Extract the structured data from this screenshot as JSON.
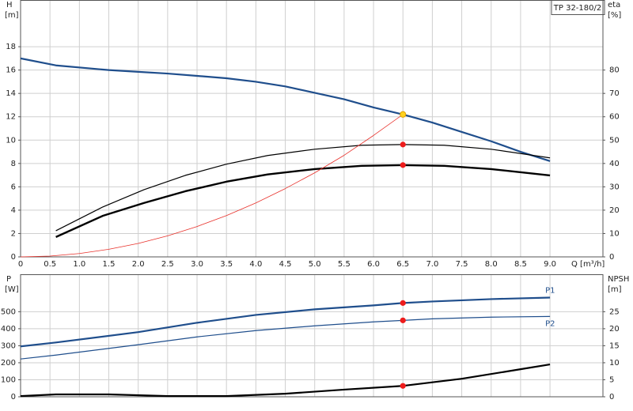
{
  "chart_data": [
    {
      "type": "line",
      "title": "TP 32-180/2",
      "xlabel": "Q [m³/h]",
      "ylabel": [
        "H",
        "[m]"
      ],
      "y2label": [
        "eta",
        "[%]"
      ],
      "xlim": [
        0,
        9.9
      ],
      "xticks": [
        0,
        0.5,
        {
          "value": 1,
          "label": "1.0"
        },
        1.5,
        {
          "value": 2,
          "label": "2.0"
        },
        2.5,
        {
          "value": 3,
          "label": "3.0"
        },
        3.5,
        {
          "value": 4,
          "label": "4.0"
        },
        4.5,
        {
          "value": 5,
          "label": "5.0"
        },
        5.5,
        {
          "value": 6,
          "label": "6.0"
        },
        6.5,
        {
          "value": 7,
          "label": "7.0"
        },
        7.5,
        {
          "value": 8,
          "label": "8.0"
        },
        8.5,
        {
          "value": 9,
          "label": "9.0"
        }
      ],
      "ylim": [
        0,
        22
      ],
      "yticks": [
        0,
        2,
        4,
        6,
        8,
        10,
        12,
        14,
        16,
        18
      ],
      "y2lim": [
        0,
        110
      ],
      "y2ticks": [
        0,
        10,
        20,
        30,
        40,
        50,
        60,
        70,
        80
      ],
      "grid": true,
      "series": [
        {
          "color": "#1f4e8c",
          "width": 2.2,
          "axis": "y",
          "x": [
            0,
            0.6,
            1.5,
            2,
            2.5,
            3,
            3.5,
            4,
            4.5,
            5,
            5.5,
            6,
            6.5,
            7,
            7.5,
            8,
            8.5,
            9
          ],
          "values": [
            17.0,
            16.4,
            16.0,
            15.85,
            15.7,
            15.5,
            15.3,
            15.0,
            14.6,
            14.05,
            13.5,
            12.8,
            12.2,
            11.5,
            10.7,
            9.9,
            9.0,
            8.2
          ]
        },
        {
          "color": "#000000",
          "width": 1.2,
          "axis": "y2",
          "x": [
            0.6,
            1.4,
            2.1,
            2.8,
            3.5,
            4.2,
            5.0,
            5.8,
            6.5,
            7.2,
            8.0,
            9.0
          ],
          "values": [
            11.2,
            21.4,
            28.8,
            34.9,
            39.7,
            43.4,
            46.1,
            47.8,
            48.1,
            47.8,
            46.1,
            42.4
          ]
        },
        {
          "color": "#000000",
          "width": 2.4,
          "axis": "y2",
          "x": [
            0.6,
            1.4,
            2.1,
            2.8,
            3.5,
            4.2,
            5.0,
            5.8,
            6.5,
            7.2,
            8.0,
            9.0
          ],
          "values": [
            8.5,
            17.6,
            23.1,
            28.1,
            32.2,
            35.3,
            37.6,
            39.0,
            39.3,
            39.0,
            37.6,
            34.9
          ]
        },
        {
          "color": "#e8302a",
          "width": 0.8,
          "axis": "y",
          "x": [
            0,
            0.5,
            1,
            1.5,
            2,
            2.5,
            3,
            3.5,
            4,
            4.5,
            5,
            5.5,
            6,
            6.5
          ],
          "values": [
            0,
            0.07,
            0.29,
            0.65,
            1.15,
            1.8,
            2.6,
            3.54,
            4.62,
            5.85,
            7.2,
            8.7,
            10.4,
            12.2
          ]
        }
      ],
      "points": [
        {
          "x": 6.5,
          "value": 12.2,
          "axis": "y",
          "color": "#ffd21f"
        },
        {
          "x": 6.5,
          "value": 48.1,
          "axis": "y2",
          "color": "#ee1c1c"
        },
        {
          "x": 6.5,
          "value": 39.3,
          "axis": "y2",
          "color": "#ee1c1c"
        }
      ]
    },
    {
      "type": "line",
      "ylabel": [
        "P",
        "[W]"
      ],
      "y2label": [
        "NPSH",
        "[m]"
      ],
      "ylim": [
        0,
        720
      ],
      "yticks": [
        0,
        100,
        200,
        300,
        400,
        500
      ],
      "y2lim": [
        0,
        36
      ],
      "y2ticks": [
        0,
        5,
        10,
        15,
        20,
        25
      ],
      "grid": true,
      "series": [
        {
          "name": "P1",
          "color": "#1f4e8c",
          "width": 2.2,
          "axis": "y",
          "x": [
            0,
            0.6,
            2,
            3,
            4,
            5,
            6,
            6.5,
            7,
            8,
            9
          ],
          "values": [
            296,
            319,
            380,
            435,
            481,
            514,
            537,
            551,
            560,
            574,
            583
          ]
        },
        {
          "name": "P2",
          "color": "#1f4e8c",
          "width": 1.2,
          "axis": "y",
          "x": [
            0,
            0.6,
            2,
            3,
            4,
            5,
            6,
            6.5,
            7,
            8,
            9
          ],
          "values": [
            222,
            245,
            306,
            352,
            389,
            417,
            440,
            449,
            458,
            468,
            472
          ]
        },
        {
          "color": "#000000",
          "width": 2.2,
          "axis": "y2",
          "x": [
            0,
            0.6,
            1.5,
            2.5,
            3.5,
            4.5,
            5.5,
            6.5,
            7.5,
            8.5,
            9
          ],
          "values": [
            0.2,
            0.7,
            0.7,
            0.2,
            0.2,
            0.9,
            2.1,
            3.2,
            5.3,
            8.1,
            9.5
          ]
        }
      ],
      "points": [
        {
          "x": 6.5,
          "value": 551,
          "axis": "y",
          "color": "#ee1c1c"
        },
        {
          "x": 6.5,
          "value": 449,
          "axis": "y",
          "color": "#ee1c1c"
        },
        {
          "x": 6.5,
          "value": 3.2,
          "axis": "y2",
          "color": "#ee1c1c"
        }
      ]
    }
  ]
}
